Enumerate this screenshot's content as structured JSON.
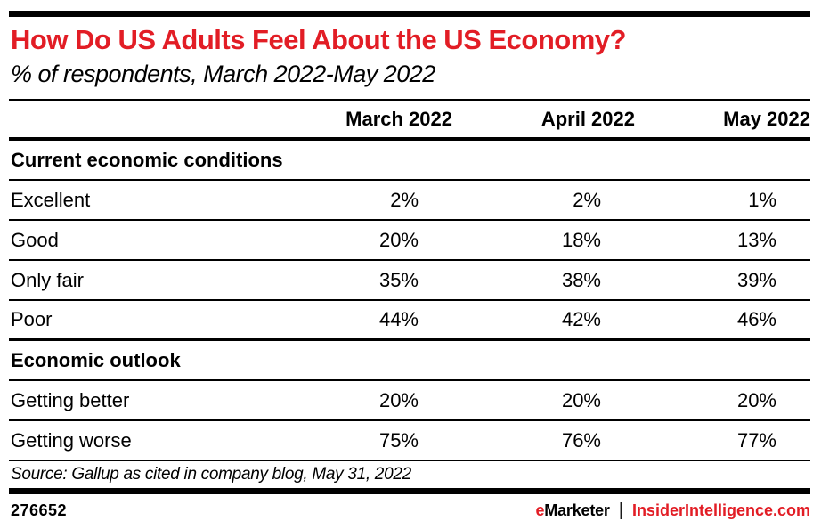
{
  "title": "How Do US Adults Feel About the US Economy?",
  "subtitle": "% of respondents, March 2022-May 2022",
  "chart_data": {
    "type": "table",
    "title": "How Do US Adults Feel About the US Economy?",
    "subtitle": "% of respondents, March 2022-May 2022",
    "columns": [
      "March 2022",
      "April 2022",
      "May 2022"
    ],
    "sections": [
      {
        "name": "Current economic conditions",
        "rows": [
          {
            "label": "Excellent",
            "values": [
              "2%",
              "2%",
              "1%"
            ]
          },
          {
            "label": "Good",
            "values": [
              "20%",
              "18%",
              "13%"
            ]
          },
          {
            "label": "Only fair",
            "values": [
              "35%",
              "38%",
              "39%"
            ]
          },
          {
            "label": "Poor",
            "values": [
              "44%",
              "42%",
              "46%"
            ]
          }
        ]
      },
      {
        "name": "Economic outlook",
        "rows": [
          {
            "label": "Getting better",
            "values": [
              "20%",
              "20%",
              "20%"
            ]
          },
          {
            "label": "Getting worse",
            "values": [
              "75%",
              "76%",
              "77%"
            ]
          }
        ]
      }
    ]
  },
  "source": "Source: Gallup as cited in company blog, May 31, 2022",
  "footer": {
    "chart_id": "276652",
    "brand_e": "e",
    "brand_rest": "Marketer",
    "separator": "|",
    "site": "InsiderIntelligence.com"
  },
  "colors": {
    "accent_red": "#e21d25",
    "text_black": "#000000",
    "background": "#ffffff"
  }
}
